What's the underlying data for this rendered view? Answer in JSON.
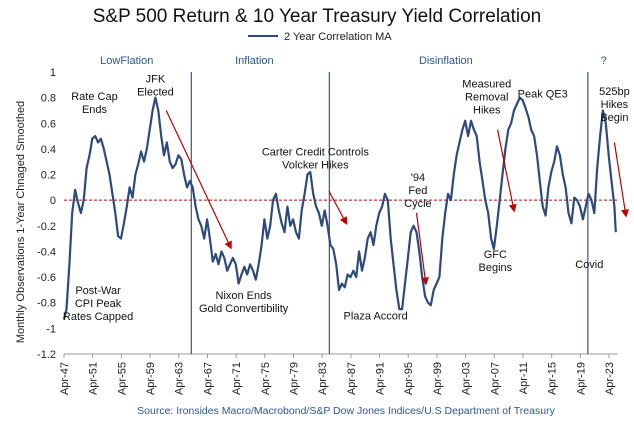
{
  "chart_data": {
    "type": "line",
    "title": "S&P 500 Return & 10 Year Treasury Yield Correlation",
    "legend": [
      "2 Year Correlation MA"
    ],
    "legend_position": "top-center",
    "ylabel": "Monthly Observations 1-Year Chnaged Smoothed",
    "xlabel": "",
    "ylim": [
      -1.2,
      1
    ],
    "yticks": [
      1,
      0.8,
      0.6,
      0.4,
      0.2,
      0,
      -0.2,
      -0.4,
      -0.6,
      -0.8,
      -1,
      -1.2
    ],
    "xlim": [
      1947.25,
      2024.5
    ],
    "xticks": [
      {
        "label": "Apr-47",
        "value": 1947.25
      },
      {
        "label": "Apr-51",
        "value": 1951.25
      },
      {
        "label": "Apr-55",
        "value": 1955.25
      },
      {
        "label": "Apr-59",
        "value": 1959.25
      },
      {
        "label": "Apr-63",
        "value": 1963.25
      },
      {
        "label": "Apr-67",
        "value": 1967.25
      },
      {
        "label": "Apr-71",
        "value": 1971.25
      },
      {
        "label": "Apr-75",
        "value": 1975.25
      },
      {
        "label": "Apr-79",
        "value": 1979.25
      },
      {
        "label": "Apr-83",
        "value": 1983.25
      },
      {
        "label": "Apr-87",
        "value": 1987.25
      },
      {
        "label": "Apr-91",
        "value": 1991.25
      },
      {
        "label": "Apr-95",
        "value": 1995.25
      },
      {
        "label": "Apr-99",
        "value": 1999.25
      },
      {
        "label": "Apr-03",
        "value": 2003.25
      },
      {
        "label": "Apr-07",
        "value": 2007.25
      },
      {
        "label": "Apr-11",
        "value": 2011.25
      },
      {
        "label": "Apr-15",
        "value": 2015.25
      },
      {
        "label": "Apr-19",
        "value": 2019.25
      },
      {
        "label": "Apr-23",
        "value": 2023.25
      }
    ],
    "series": [
      {
        "name": "2 Year Correlation MA",
        "color": "#2e4a7d",
        "x": [
          1947.25,
          1947.6,
          1948.0,
          1948.4,
          1948.8,
          1949.2,
          1949.6,
          1950.0,
          1950.4,
          1950.8,
          1951.2,
          1951.6,
          1952.0,
          1952.4,
          1952.8,
          1953.2,
          1953.6,
          1954.0,
          1954.4,
          1954.8,
          1955.2,
          1955.6,
          1956.0,
          1956.4,
          1956.8,
          1957.2,
          1957.6,
          1958.0,
          1958.4,
          1958.8,
          1959.2,
          1959.6,
          1960.0,
          1960.4,
          1960.8,
          1961.2,
          1961.6,
          1962.0,
          1962.4,
          1962.8,
          1963.2,
          1963.6,
          1964.0,
          1964.4,
          1964.8,
          1965.2,
          1965.6,
          1966.0,
          1966.4,
          1966.8,
          1967.2,
          1967.6,
          1968.0,
          1968.4,
          1968.8,
          1969.2,
          1969.6,
          1970.0,
          1970.4,
          1970.8,
          1971.2,
          1971.6,
          1972.0,
          1972.4,
          1972.8,
          1973.2,
          1973.6,
          1974.0,
          1974.4,
          1974.8,
          1975.2,
          1975.6,
          1976.0,
          1976.4,
          1976.8,
          1977.2,
          1977.6,
          1978.0,
          1978.4,
          1978.8,
          1979.2,
          1979.6,
          1980.0,
          1980.4,
          1980.8,
          1981.2,
          1981.6,
          1982.0,
          1982.4,
          1982.8,
          1983.2,
          1983.6,
          1984.0,
          1984.4,
          1984.8,
          1985.2,
          1985.6,
          1986.0,
          1986.4,
          1986.8,
          1987.2,
          1987.6,
          1988.0,
          1988.4,
          1988.8,
          1989.2,
          1989.6,
          1990.0,
          1990.4,
          1990.8,
          1991.2,
          1991.6,
          1992.0,
          1992.4,
          1992.8,
          1993.2,
          1993.6,
          1994.0,
          1994.4,
          1994.8,
          1995.2,
          1995.6,
          1996.0,
          1996.4,
          1996.8,
          1997.2,
          1997.6,
          1998.0,
          1998.4,
          1998.8,
          1999.2,
          1999.6,
          2000.0,
          2000.4,
          2000.8,
          2001.2,
          2001.6,
          2002.0,
          2002.4,
          2002.8,
          2003.2,
          2003.6,
          2004.0,
          2004.4,
          2004.8,
          2005.2,
          2005.6,
          2006.0,
          2006.4,
          2006.8,
          2007.2,
          2007.6,
          2008.0,
          2008.4,
          2008.8,
          2009.2,
          2009.6,
          2010.0,
          2010.4,
          2010.8,
          2011.2,
          2011.6,
          2012.0,
          2012.4,
          2012.8,
          2013.2,
          2013.6,
          2014.0,
          2014.4,
          2014.8,
          2015.2,
          2015.6,
          2016.0,
          2016.4,
          2016.8,
          2017.2,
          2017.6,
          2018.0,
          2018.4,
          2018.8,
          2019.2,
          2019.6,
          2020.0,
          2020.4,
          2020.8,
          2021.2,
          2021.6,
          2022.0,
          2022.4,
          2022.8,
          2023.2,
          2023.6,
          2024.0,
          2024.2
        ],
        "values": [
          -0.93,
          -0.85,
          -0.5,
          -0.1,
          0.08,
          -0.02,
          -0.1,
          0.0,
          0.25,
          0.35,
          0.48,
          0.5,
          0.45,
          0.48,
          0.4,
          0.3,
          0.2,
          0.05,
          -0.1,
          -0.28,
          -0.3,
          -0.18,
          -0.05,
          0.1,
          0.02,
          0.2,
          0.28,
          0.38,
          0.3,
          0.4,
          0.55,
          0.7,
          0.8,
          0.7,
          0.5,
          0.35,
          0.45,
          0.3,
          0.25,
          0.28,
          0.35,
          0.32,
          0.2,
          0.1,
          0.15,
          0.1,
          -0.05,
          -0.15,
          -0.2,
          -0.3,
          -0.15,
          -0.3,
          -0.48,
          -0.42,
          -0.5,
          -0.4,
          -0.45,
          -0.55,
          -0.5,
          -0.45,
          -0.5,
          -0.65,
          -0.58,
          -0.52,
          -0.58,
          -0.5,
          -0.55,
          -0.62,
          -0.5,
          -0.35,
          -0.15,
          -0.3,
          -0.2,
          0.0,
          0.05,
          -0.08,
          -0.18,
          -0.25,
          -0.05,
          -0.2,
          -0.15,
          -0.25,
          -0.3,
          -0.08,
          0.05,
          0.2,
          0.22,
          0.05,
          -0.05,
          -0.1,
          -0.2,
          -0.08,
          -0.2,
          -0.35,
          -0.38,
          -0.5,
          -0.7,
          -0.65,
          -0.68,
          -0.58,
          -0.6,
          -0.55,
          -0.6,
          -0.4,
          -0.55,
          -0.45,
          -0.3,
          -0.25,
          -0.35,
          -0.2,
          -0.1,
          -0.05,
          0.05,
          0.0,
          -0.3,
          -0.5,
          -0.7,
          -0.85,
          -0.85,
          -0.65,
          -0.45,
          -0.25,
          -0.2,
          -0.25,
          -0.4,
          -0.6,
          -0.75,
          -0.8,
          -0.82,
          -0.7,
          -0.65,
          -0.6,
          -0.3,
          -0.1,
          0.05,
          0.0,
          0.2,
          0.35,
          0.45,
          0.55,
          0.62,
          0.5,
          0.62,
          0.55,
          0.5,
          0.3,
          0.15,
          0.0,
          -0.1,
          -0.3,
          -0.38,
          -0.2,
          0.0,
          0.2,
          0.4,
          0.55,
          0.6,
          0.7,
          0.75,
          0.8,
          0.78,
          0.72,
          0.65,
          0.55,
          0.5,
          0.35,
          0.15,
          -0.05,
          -0.12,
          0.1,
          0.22,
          0.3,
          0.42,
          0.35,
          0.2,
          0.1,
          -0.1,
          -0.18,
          0.02,
          0.0,
          -0.05,
          -0.15,
          -0.05,
          0.05,
          0.0,
          -0.1,
          0.25,
          0.5,
          0.7,
          0.6,
          0.35,
          0.15,
          -0.05,
          -0.25
        ]
      }
    ],
    "reference_lines": [
      {
        "type": "horizontal",
        "y": 0,
        "style": "dashed",
        "color": "#c00000"
      },
      {
        "type": "vertical",
        "x": 1965.0,
        "color": "#2e5597"
      },
      {
        "type": "vertical",
        "x": 1984.25,
        "color": "#2e5597"
      },
      {
        "type": "vertical",
        "x": 2020.3,
        "color": "#2e5597"
      }
    ],
    "eras": [
      {
        "label": "LowFlation",
        "x_center": 1956.0
      },
      {
        "label": "Inflation",
        "x_center": 1973.8
      },
      {
        "label": "Disinflation",
        "x_center": 2000.5
      },
      {
        "label": "?",
        "x_center": 2022.5
      }
    ],
    "annotations": [
      {
        "lines": [
          "Rate Cap",
          "Ends"
        ],
        "x": 1951.5,
        "y": 0.78
      },
      {
        "lines": [
          "JFK",
          "Elected"
        ],
        "x": 1960.0,
        "y": 0.92
      },
      {
        "lines": [
          "Post-War",
          "CPI Peak",
          "Rates Capped"
        ],
        "x": 1952.0,
        "y": -0.73
      },
      {
        "lines": [
          "Nixon Ends",
          "Gold Convertibility"
        ],
        "x": 1972.3,
        "y": -0.77
      },
      {
        "lines": [
          "Carter Credit Controls",
          "Volcker Hikes"
        ],
        "x": 1982.3,
        "y": 0.35
      },
      {
        "lines": [
          "Plaza Accord"
        ],
        "x": 1990.7,
        "y": -0.93
      },
      {
        "lines": [
          "'94",
          "Fed",
          "Cycle"
        ],
        "x": 1996.6,
        "y": 0.15
      },
      {
        "lines": [
          "Measured",
          "Removal",
          "Hikes"
        ],
        "x": 2006.2,
        "y": 0.88
      },
      {
        "lines": [
          "Peak QE3"
        ],
        "x": 2014.0,
        "y": 0.8
      },
      {
        "lines": [
          "GFC",
          "Begins"
        ],
        "x": 2007.4,
        "y": -0.45
      },
      {
        "lines": [
          "Covid"
        ],
        "x": 2020.5,
        "y": -0.53
      },
      {
        "lines": [
          "525bp",
          "Hikes",
          "Begin"
        ],
        "x": 2024.0,
        "y": 0.82
      }
    ],
    "arrows": [
      {
        "from": [
          1961.5,
          0.7
        ],
        "to": [
          1970.5,
          -0.37
        ]
      },
      {
        "from": [
          1984.2,
          0.07
        ],
        "to": [
          1986.6,
          -0.18
        ]
      },
      {
        "from": [
          1996.4,
          -0.1
        ],
        "to": [
          1997.7,
          -0.65
        ]
      },
      {
        "from": [
          2007.7,
          0.55
        ],
        "to": [
          2010.0,
          -0.08
        ]
      },
      {
        "from": [
          2024.0,
          0.45
        ],
        "to": [
          2025.6,
          -0.12
        ]
      }
    ],
    "source": "Source: Ironsides Macro/Macrobond/S&P Dow Jones Indices/U.S Department of Treasury"
  }
}
